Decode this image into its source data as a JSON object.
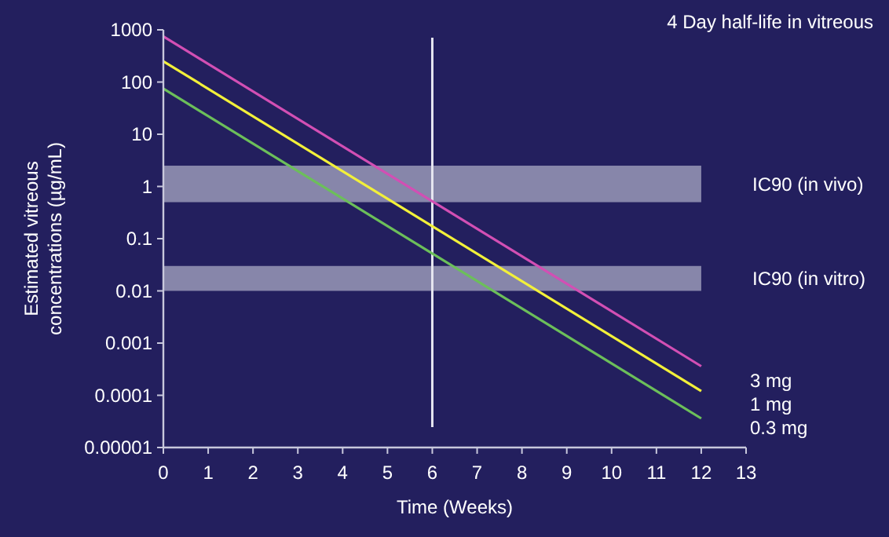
{
  "chart_data": {
    "type": "line",
    "xlabel": "Time (Weeks)",
    "ylabel": "Estimated vitreous concentrations (µg/mL)",
    "log": "y",
    "grid": false,
    "marker": "none",
    "line_style": "solid",
    "xlim": [
      0,
      13
    ],
    "xticks": [
      0,
      1,
      2,
      3,
      4,
      5,
      6,
      7,
      8,
      9,
      10,
      11,
      12,
      13
    ],
    "ylim": [
      1e-05,
      1000
    ],
    "yticks": [
      1000,
      100,
      10,
      1,
      0.1,
      0.01,
      0.001,
      0.0001,
      {
        "value": 1e-05,
        "label": "0.00001"
      }
    ],
    "x": [
      0,
      12
    ],
    "series": [
      {
        "name": "3 mg",
        "color": "#d24fb4",
        "values": [
          750,
          0.00036
        ]
      },
      {
        "name": "1 mg",
        "color": "#f2f03a",
        "values": [
          250,
          0.00012
        ]
      },
      {
        "name": "0.3 mg",
        "color": "#6cbf5a",
        "values": [
          75,
          3.6e-05
        ]
      }
    ],
    "bands": [
      {
        "axis": "y",
        "from": 0.5,
        "to": 2.5,
        "label": "IC90 (in vivo)",
        "color": "#a9a9c4"
      },
      {
        "axis": "y",
        "from": 0.01,
        "to": 0.03,
        "label": "IC90 (in vitro)",
        "color": "#a9a9c4"
      }
    ],
    "ref_lines": [
      {
        "axis": "x",
        "value": 6,
        "color": "#e6e6f0"
      }
    ],
    "annotations": [
      "4 Day half-life in vitreous"
    ]
  }
}
